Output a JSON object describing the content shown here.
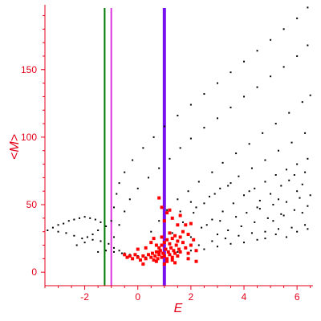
{
  "chart_data": {
    "type": "scatter",
    "xlabel": "E",
    "ylabel": "<M>",
    "xlim": [
      -3.5,
      6.6
    ],
    "ylim": [
      -10,
      198
    ],
    "xticks": [
      -2,
      0,
      2,
      4,
      6
    ],
    "xtick_labels": [
      "-2",
      "0",
      "2",
      "4",
      "6"
    ],
    "yticks": [
      0,
      50,
      100,
      150
    ],
    "ytick_labels": [
      "0",
      "50",
      "100",
      "150"
    ],
    "grid": false,
    "axis_color": "#e4001a",
    "vertical_lines": [
      {
        "x": -1.25,
        "color": "#007a00"
      },
      {
        "x": -1.0,
        "color": "#dd33dd"
      },
      {
        "x": 1.0,
        "color": "#7711ee"
      }
    ],
    "series": [
      {
        "color": "#000000",
        "points": [
          [
            -3.4,
            31
          ],
          [
            -3.2,
            33
          ],
          [
            -3.0,
            35
          ],
          [
            -2.8,
            36
          ],
          [
            -2.6,
            38
          ],
          [
            -2.4,
            39
          ],
          [
            -2.2,
            40
          ],
          [
            -2.0,
            41
          ],
          [
            -1.8,
            40
          ],
          [
            -1.6,
            39
          ],
          [
            -1.4,
            37
          ],
          [
            -1.2,
            34
          ],
          [
            -3.0,
            30
          ],
          [
            -2.7,
            29
          ],
          [
            -2.4,
            27
          ],
          [
            -2.1,
            25
          ],
          [
            -1.9,
            26
          ],
          [
            -1.7,
            28
          ],
          [
            -1.5,
            31
          ],
          [
            -2.3,
            20
          ],
          [
            -2.0,
            22
          ],
          [
            -1.7,
            24
          ],
          [
            -1.4,
            23
          ],
          [
            -1.1,
            21
          ],
          [
            -0.9,
            18
          ],
          [
            -0.7,
            16
          ],
          [
            -0.5,
            14
          ],
          [
            -0.3,
            13
          ],
          [
            0.0,
            12
          ],
          [
            0.3,
            11
          ],
          [
            -1.5,
            15
          ],
          [
            -1.2,
            16
          ],
          [
            -0.9,
            15
          ],
          [
            -0.6,
            14
          ],
          [
            -1.0,
            38
          ],
          [
            -0.9,
            48
          ],
          [
            -0.8,
            58
          ],
          [
            -0.7,
            66
          ],
          [
            -0.5,
            74
          ],
          [
            -0.2,
            83
          ],
          [
            0.2,
            92
          ],
          [
            0.6,
            100
          ],
          [
            1.0,
            108
          ],
          [
            1.5,
            116
          ],
          [
            2.0,
            124
          ],
          [
            2.5,
            132
          ],
          [
            3.0,
            140
          ],
          [
            3.5,
            148
          ],
          [
            4.0,
            156
          ],
          [
            4.5,
            164
          ],
          [
            5.0,
            172
          ],
          [
            5.5,
            180
          ],
          [
            6.0,
            188
          ],
          [
            6.4,
            196
          ],
          [
            -0.9,
            26
          ],
          [
            -0.7,
            35
          ],
          [
            -0.5,
            45
          ],
          [
            -0.3,
            54
          ],
          [
            0.0,
            62
          ],
          [
            0.4,
            70
          ],
          [
            0.8,
            77
          ],
          [
            1.2,
            84
          ],
          [
            1.6,
            92
          ],
          [
            2.0,
            99
          ],
          [
            2.5,
            107
          ],
          [
            3.0,
            114
          ],
          [
            3.5,
            122
          ],
          [
            4.0,
            130
          ],
          [
            4.5,
            137
          ],
          [
            5.0,
            145
          ],
          [
            5.5,
            152
          ],
          [
            6.0,
            160
          ],
          [
            6.4,
            168
          ],
          [
            0.5,
            30
          ],
          [
            0.8,
            38
          ],
          [
            1.1,
            46
          ],
          [
            1.5,
            54
          ],
          [
            1.9,
            60
          ],
          [
            2.3,
            67
          ],
          [
            2.8,
            74
          ],
          [
            3.2,
            81
          ],
          [
            3.7,
            88
          ],
          [
            4.2,
            95
          ],
          [
            4.7,
            103
          ],
          [
            5.2,
            110
          ],
          [
            5.7,
            118
          ],
          [
            6.2,
            126
          ],
          [
            6.5,
            131
          ],
          [
            1.3,
            29
          ],
          [
            1.7,
            37
          ],
          [
            2.1,
            44
          ],
          [
            2.5,
            51
          ],
          [
            2.9,
            58
          ],
          [
            3.4,
            64
          ],
          [
            3.8,
            71
          ],
          [
            4.3,
            77
          ],
          [
            4.8,
            83
          ],
          [
            5.3,
            90
          ],
          [
            5.8,
            96
          ],
          [
            6.3,
            103
          ],
          [
            2.0,
            26
          ],
          [
            2.4,
            33
          ],
          [
            2.8,
            39
          ],
          [
            3.2,
            45
          ],
          [
            3.6,
            51
          ],
          [
            4.0,
            57
          ],
          [
            4.4,
            62
          ],
          [
            4.8,
            67
          ],
          [
            5.2,
            72
          ],
          [
            5.6,
            76
          ],
          [
            6.0,
            80
          ],
          [
            6.4,
            84
          ],
          [
            1.8,
            18
          ],
          [
            2.3,
            20
          ],
          [
            2.8,
            23
          ],
          [
            3.3,
            25
          ],
          [
            3.8,
            27
          ],
          [
            4.3,
            29
          ],
          [
            4.8,
            30
          ],
          [
            5.3,
            32
          ],
          [
            5.8,
            33
          ],
          [
            6.3,
            35
          ],
          [
            1.5,
            15
          ],
          [
            2.0,
            16
          ],
          [
            2.5,
            17
          ],
          [
            3.0,
            19
          ],
          [
            3.5,
            21
          ],
          [
            4.0,
            22
          ],
          [
            4.5,
            24
          ],
          [
            2.6,
            35
          ],
          [
            3.1,
            38
          ],
          [
            3.7,
            41
          ],
          [
            4.1,
            44
          ],
          [
            4.6,
            47
          ],
          [
            5.1,
            50
          ],
          [
            5.6,
            52
          ],
          [
            6.1,
            55
          ],
          [
            6.5,
            57
          ],
          [
            3.0,
            28
          ],
          [
            3.4,
            31
          ],
          [
            3.9,
            34
          ],
          [
            4.4,
            37
          ],
          [
            4.9,
            40
          ],
          [
            5.4,
            43
          ],
          [
            5.9,
            46
          ],
          [
            6.4,
            49
          ],
          [
            4.2,
            60
          ],
          [
            4.6,
            53
          ],
          [
            5.0,
            58
          ],
          [
            5.4,
            64
          ],
          [
            5.7,
            68
          ],
          [
            6.0,
            60
          ],
          [
            6.2,
            65
          ],
          [
            5.9,
            72
          ],
          [
            6.3,
            74
          ],
          [
            4.8,
            25
          ],
          [
            5.2,
            28
          ],
          [
            5.6,
            26
          ],
          [
            6.0,
            30
          ],
          [
            6.4,
            32
          ],
          [
            5.1,
            38
          ],
          [
            5.5,
            42
          ],
          [
            6.2,
            44
          ],
          [
            4.5,
            48
          ],
          [
            5.3,
            54
          ],
          [
            2.2,
            48
          ],
          [
            2.7,
            56
          ],
          [
            3.1,
            62
          ],
          [
            3.5,
            66
          ],
          [
            1.6,
            45
          ],
          [
            2.0,
            52
          ]
        ]
      },
      {
        "color": "#ff0000",
        "points": [
          [
            -0.5,
            13
          ],
          [
            -0.4,
            11
          ],
          [
            -0.3,
            12
          ],
          [
            -0.2,
            10
          ],
          [
            -0.1,
            13
          ],
          [
            0.0,
            11
          ],
          [
            0.1,
            9
          ],
          [
            0.2,
            12
          ],
          [
            0.3,
            10
          ],
          [
            0.4,
            13
          ],
          [
            0.5,
            11
          ],
          [
            0.55,
            14
          ],
          [
            0.6,
            9
          ],
          [
            0.65,
            12
          ],
          [
            0.7,
            15
          ],
          [
            0.75,
            10
          ],
          [
            0.8,
            13
          ],
          [
            0.85,
            16
          ],
          [
            0.9,
            11
          ],
          [
            0.95,
            14
          ],
          [
            1.0,
            12
          ],
          [
            1.05,
            17
          ],
          [
            1.1,
            10
          ],
          [
            1.15,
            15
          ],
          [
            1.2,
            13
          ],
          [
            1.25,
            18
          ],
          [
            1.3,
            11
          ],
          [
            1.35,
            16
          ],
          [
            1.4,
            14
          ],
          [
            1.45,
            20
          ],
          [
            1.5,
            12
          ],
          [
            1.55,
            17
          ],
          [
            1.6,
            15
          ],
          [
            1.7,
            22
          ],
          [
            1.8,
            18
          ],
          [
            1.9,
            14
          ],
          [
            2.0,
            20
          ],
          [
            2.2,
            16
          ],
          [
            0.9,
            20
          ],
          [
            1.0,
            22
          ],
          [
            1.1,
            24
          ],
          [
            1.2,
            21
          ],
          [
            0.8,
            18
          ],
          [
            0.7,
            20
          ],
          [
            1.3,
            25
          ],
          [
            1.4,
            27
          ],
          [
            1.6,
            26
          ],
          [
            1.9,
            28
          ],
          [
            2.1,
            24
          ],
          [
            1.5,
            23
          ],
          [
            1.7,
            30
          ],
          [
            1.2,
            29
          ],
          [
            0.9,
            26
          ],
          [
            0.6,
            25
          ],
          [
            1.9,
            10
          ],
          [
            2.2,
            8
          ],
          [
            0.3,
            18
          ],
          [
            0.0,
            17
          ],
          [
            1.0,
            38
          ],
          [
            1.1,
            44
          ],
          [
            0.8,
            55
          ],
          [
            0.9,
            48
          ],
          [
            1.3,
            40
          ],
          [
            1.5,
            35
          ],
          [
            1.6,
            42
          ],
          [
            0.5,
            22
          ],
          [
            0.2,
            6
          ],
          [
            1.0,
            6
          ],
          [
            1.4,
            7
          ],
          [
            0.7,
            8
          ],
          [
            1.8,
            35
          ],
          [
            2.0,
            36
          ],
          [
            1.2,
            46
          ],
          [
            0.8,
            15
          ],
          [
            1.1,
            8
          ],
          [
            1.3,
            9
          ]
        ]
      }
    ]
  }
}
